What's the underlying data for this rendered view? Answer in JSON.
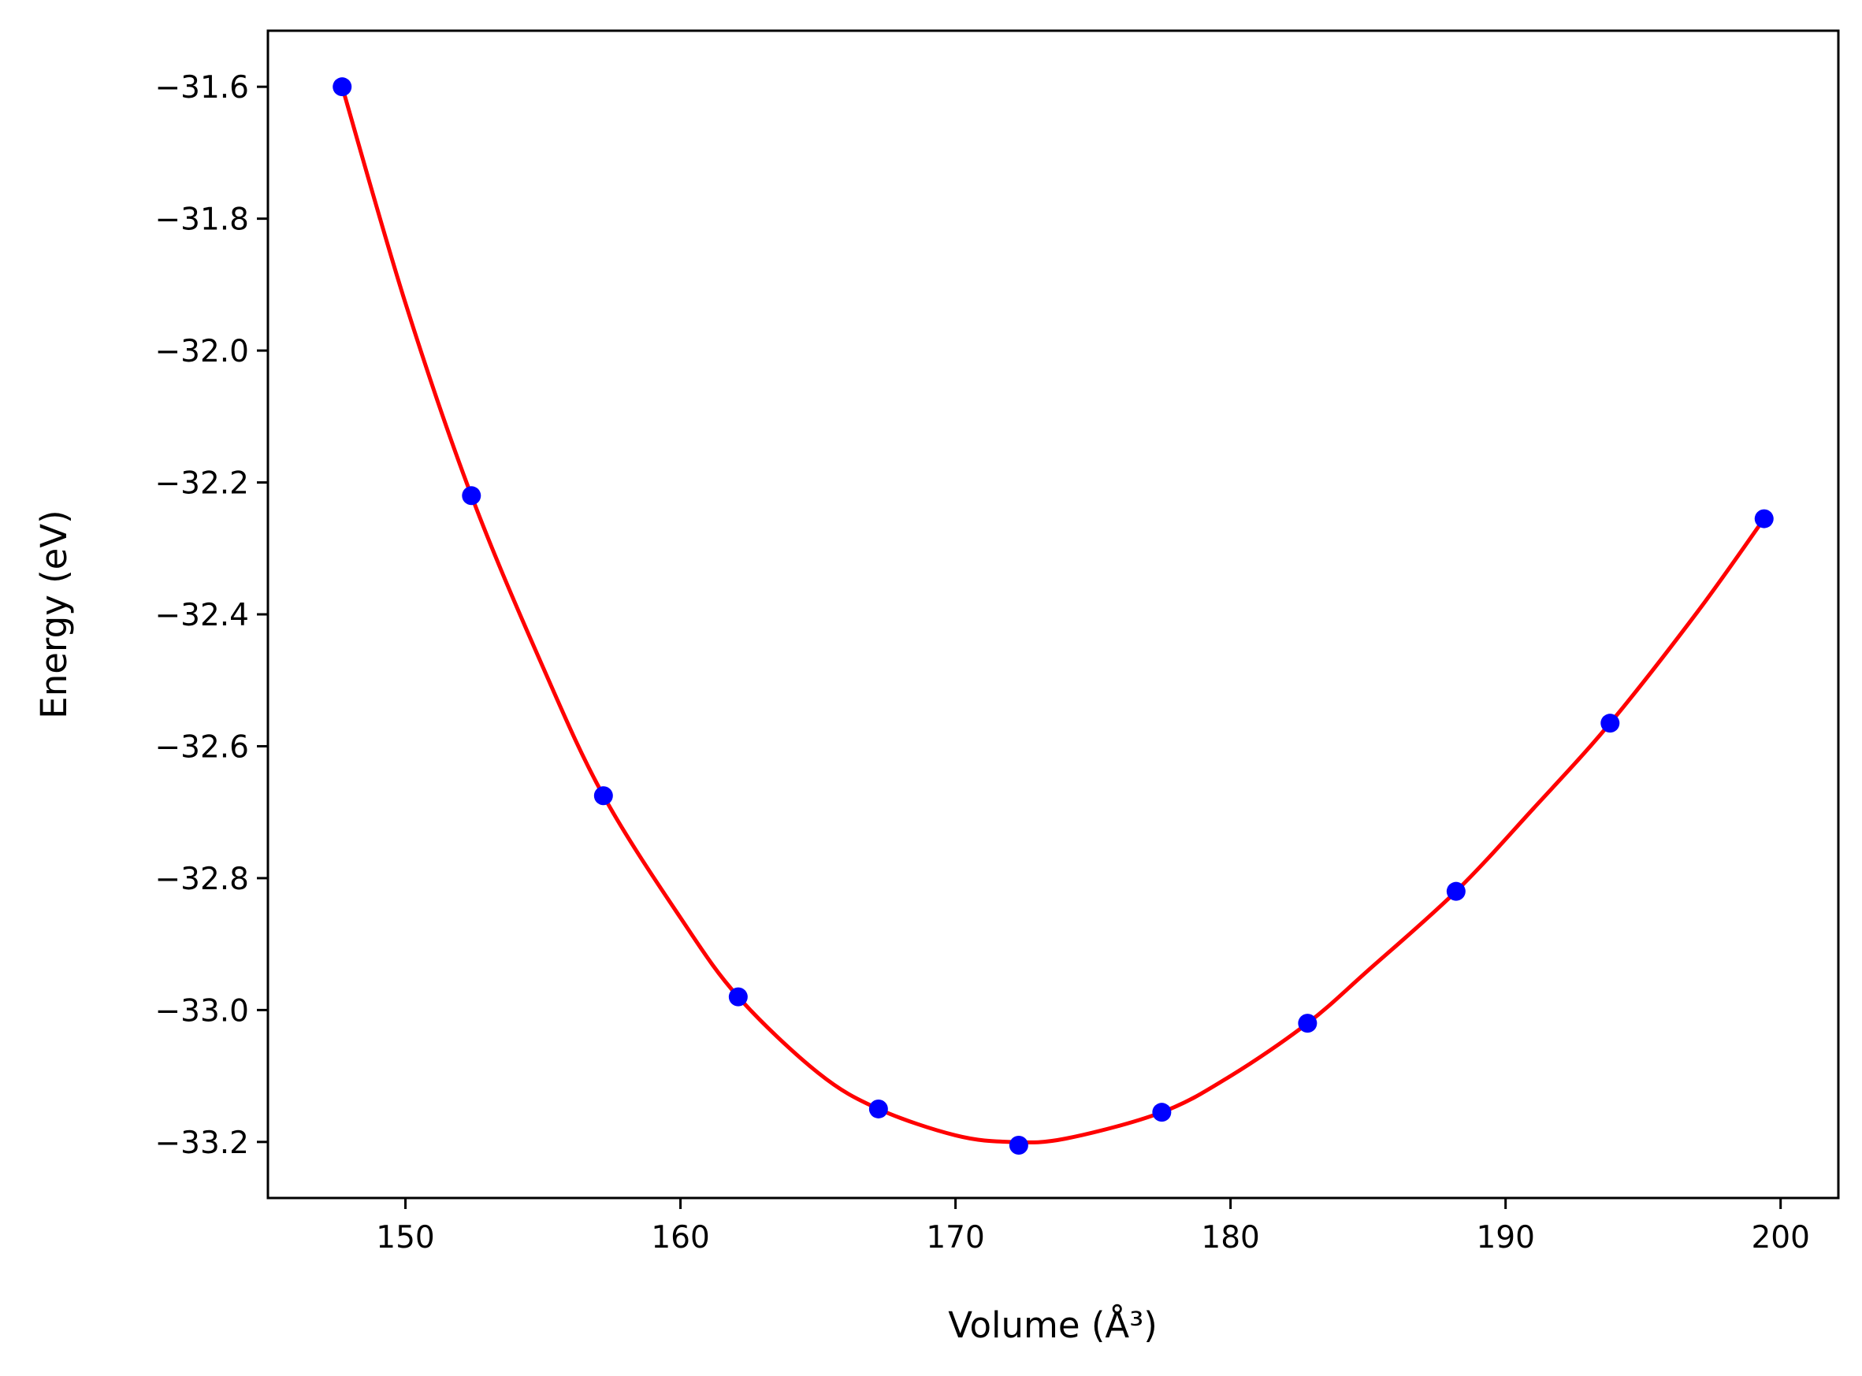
{
  "chart_data": {
    "type": "scatter",
    "title": "",
    "xlabel": "Volume (Å³)",
    "ylabel": "Energy (eV)",
    "xlim": [
      145.0,
      202.1
    ],
    "ylim": [
      -33.285,
      -31.515
    ],
    "x_ticks": [
      150,
      160,
      170,
      180,
      190,
      200
    ],
    "x_tick_labels": [
      "150",
      "160",
      "170",
      "180",
      "190",
      "200"
    ],
    "y_ticks": [
      -31.6,
      -31.8,
      -32.0,
      -32.2,
      -32.4,
      -32.6,
      -32.8,
      -33.0,
      -33.2
    ],
    "y_tick_labels": [
      "−31.6",
      "−31.8",
      "−32.0",
      "−32.2",
      "−32.4",
      "−32.6",
      "−32.8",
      "−33.0",
      "−33.2"
    ],
    "grid": false,
    "series": [
      {
        "kind": "points",
        "color": "#0000ff",
        "x": [
          147.7,
          152.4,
          157.2,
          162.1,
          167.2,
          172.3,
          177.5,
          182.8,
          188.2,
          193.8,
          199.4
        ],
        "y": [
          -31.6,
          -32.22,
          -32.675,
          -32.98,
          -33.15,
          -33.205,
          -33.155,
          -33.02,
          -32.82,
          -32.565,
          -32.255
        ]
      },
      {
        "kind": "fit-curve",
        "color": "#ff0000",
        "x": [
          147.7,
          150.0,
          152.4,
          155.0,
          157.2,
          160.0,
          162.1,
          165.0,
          167.2,
          170.0,
          172.0,
          174.0,
          177.5,
          180.0,
          182.8,
          185.0,
          188.2,
          191.0,
          193.8,
          197.0,
          199.4
        ],
        "y": [
          -31.6,
          -31.928,
          -32.22,
          -32.48,
          -32.675,
          -32.86,
          -32.98,
          -33.095,
          -33.15,
          -33.19,
          -33.2,
          -33.195,
          -33.155,
          -33.1,
          -33.02,
          -32.94,
          -32.82,
          -32.695,
          -32.565,
          -32.395,
          -32.255
        ]
      }
    ]
  }
}
